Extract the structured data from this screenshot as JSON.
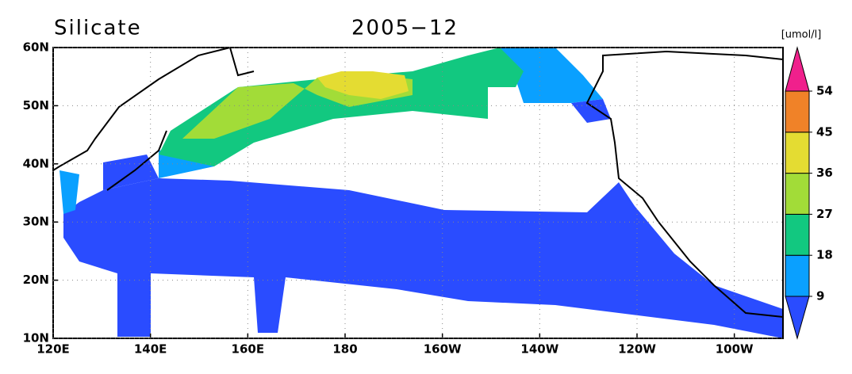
{
  "chart_data": {
    "type": "map",
    "title": "Silicate",
    "subtitle": "2005−12",
    "colorbar_label": "[umol/l]",
    "xlim": [
      120,
      270
    ],
    "ylim": [
      10,
      60
    ],
    "xticks": [
      {
        "value": 120,
        "label": "120E"
      },
      {
        "value": 140,
        "label": "140E"
      },
      {
        "value": 160,
        "label": "160E"
      },
      180,
      {
        "value": 200,
        "label": "160W"
      },
      {
        "value": 220,
        "label": "140W"
      },
      {
        "value": 240,
        "label": "120W"
      },
      {
        "value": 260,
        "label": "100W"
      }
    ],
    "yticks": [
      {
        "value": 10,
        "label": "10N"
      },
      {
        "value": 20,
        "label": "20N"
      },
      {
        "value": 30,
        "label": "30N"
      },
      {
        "value": 40,
        "label": "40N"
      },
      {
        "value": 50,
        "label": "50N"
      },
      {
        "value": 60,
        "label": "60N"
      }
    ],
    "grid": true,
    "levels": [
      9,
      18,
      27,
      36,
      45,
      54
    ],
    "colors": [
      "#2a4cff",
      "#0aa0ff",
      "#12c880",
      "#a2dc38",
      "#e4dc32",
      "#f08228",
      "#f0208c"
    ]
  }
}
